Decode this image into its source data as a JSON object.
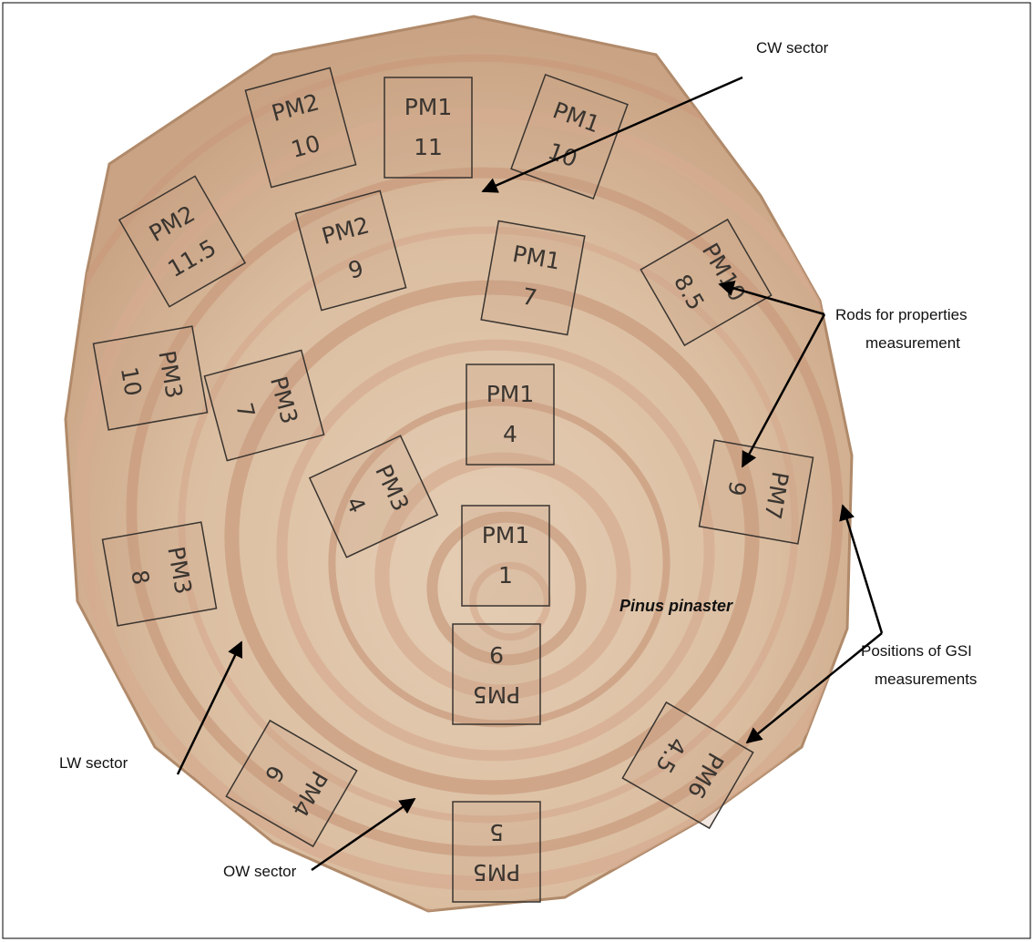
{
  "annotations": {
    "cw": "CW sector",
    "rods": [
      "Rods for properties",
      "measurement"
    ],
    "gsi": [
      "Positions of GSI",
      "measurements"
    ],
    "lw": "LW sector",
    "ow": "OW sector",
    "species": "Pinus pinaster"
  },
  "samples": [
    {
      "plot": "PM2",
      "height": "10"
    },
    {
      "plot": "PM1",
      "height": "11"
    },
    {
      "plot": "PM1",
      "height": "10"
    },
    {
      "plot": "PM2",
      "height": "11.5"
    },
    {
      "plot": "PM2",
      "height": "9"
    },
    {
      "plot": "PM1",
      "height": "7"
    },
    {
      "plot": "PM10",
      "height": "8.5"
    },
    {
      "plot": "PM3",
      "height": "10"
    },
    {
      "plot": "PM3",
      "height": "7"
    },
    {
      "plot": "PM1",
      "height": "4"
    },
    {
      "plot": "PM3",
      "height": "4"
    },
    {
      "plot": "PM7",
      "height": "9"
    },
    {
      "plot": "PM3",
      "height": "8"
    },
    {
      "plot": "PM1",
      "height": "1"
    },
    {
      "plot": "PM5",
      "height": "9"
    },
    {
      "plot": "PM4",
      "height": "6"
    },
    {
      "plot": "PM6",
      "height": "4.5"
    },
    {
      "plot": "PM5",
      "height": "5"
    }
  ]
}
